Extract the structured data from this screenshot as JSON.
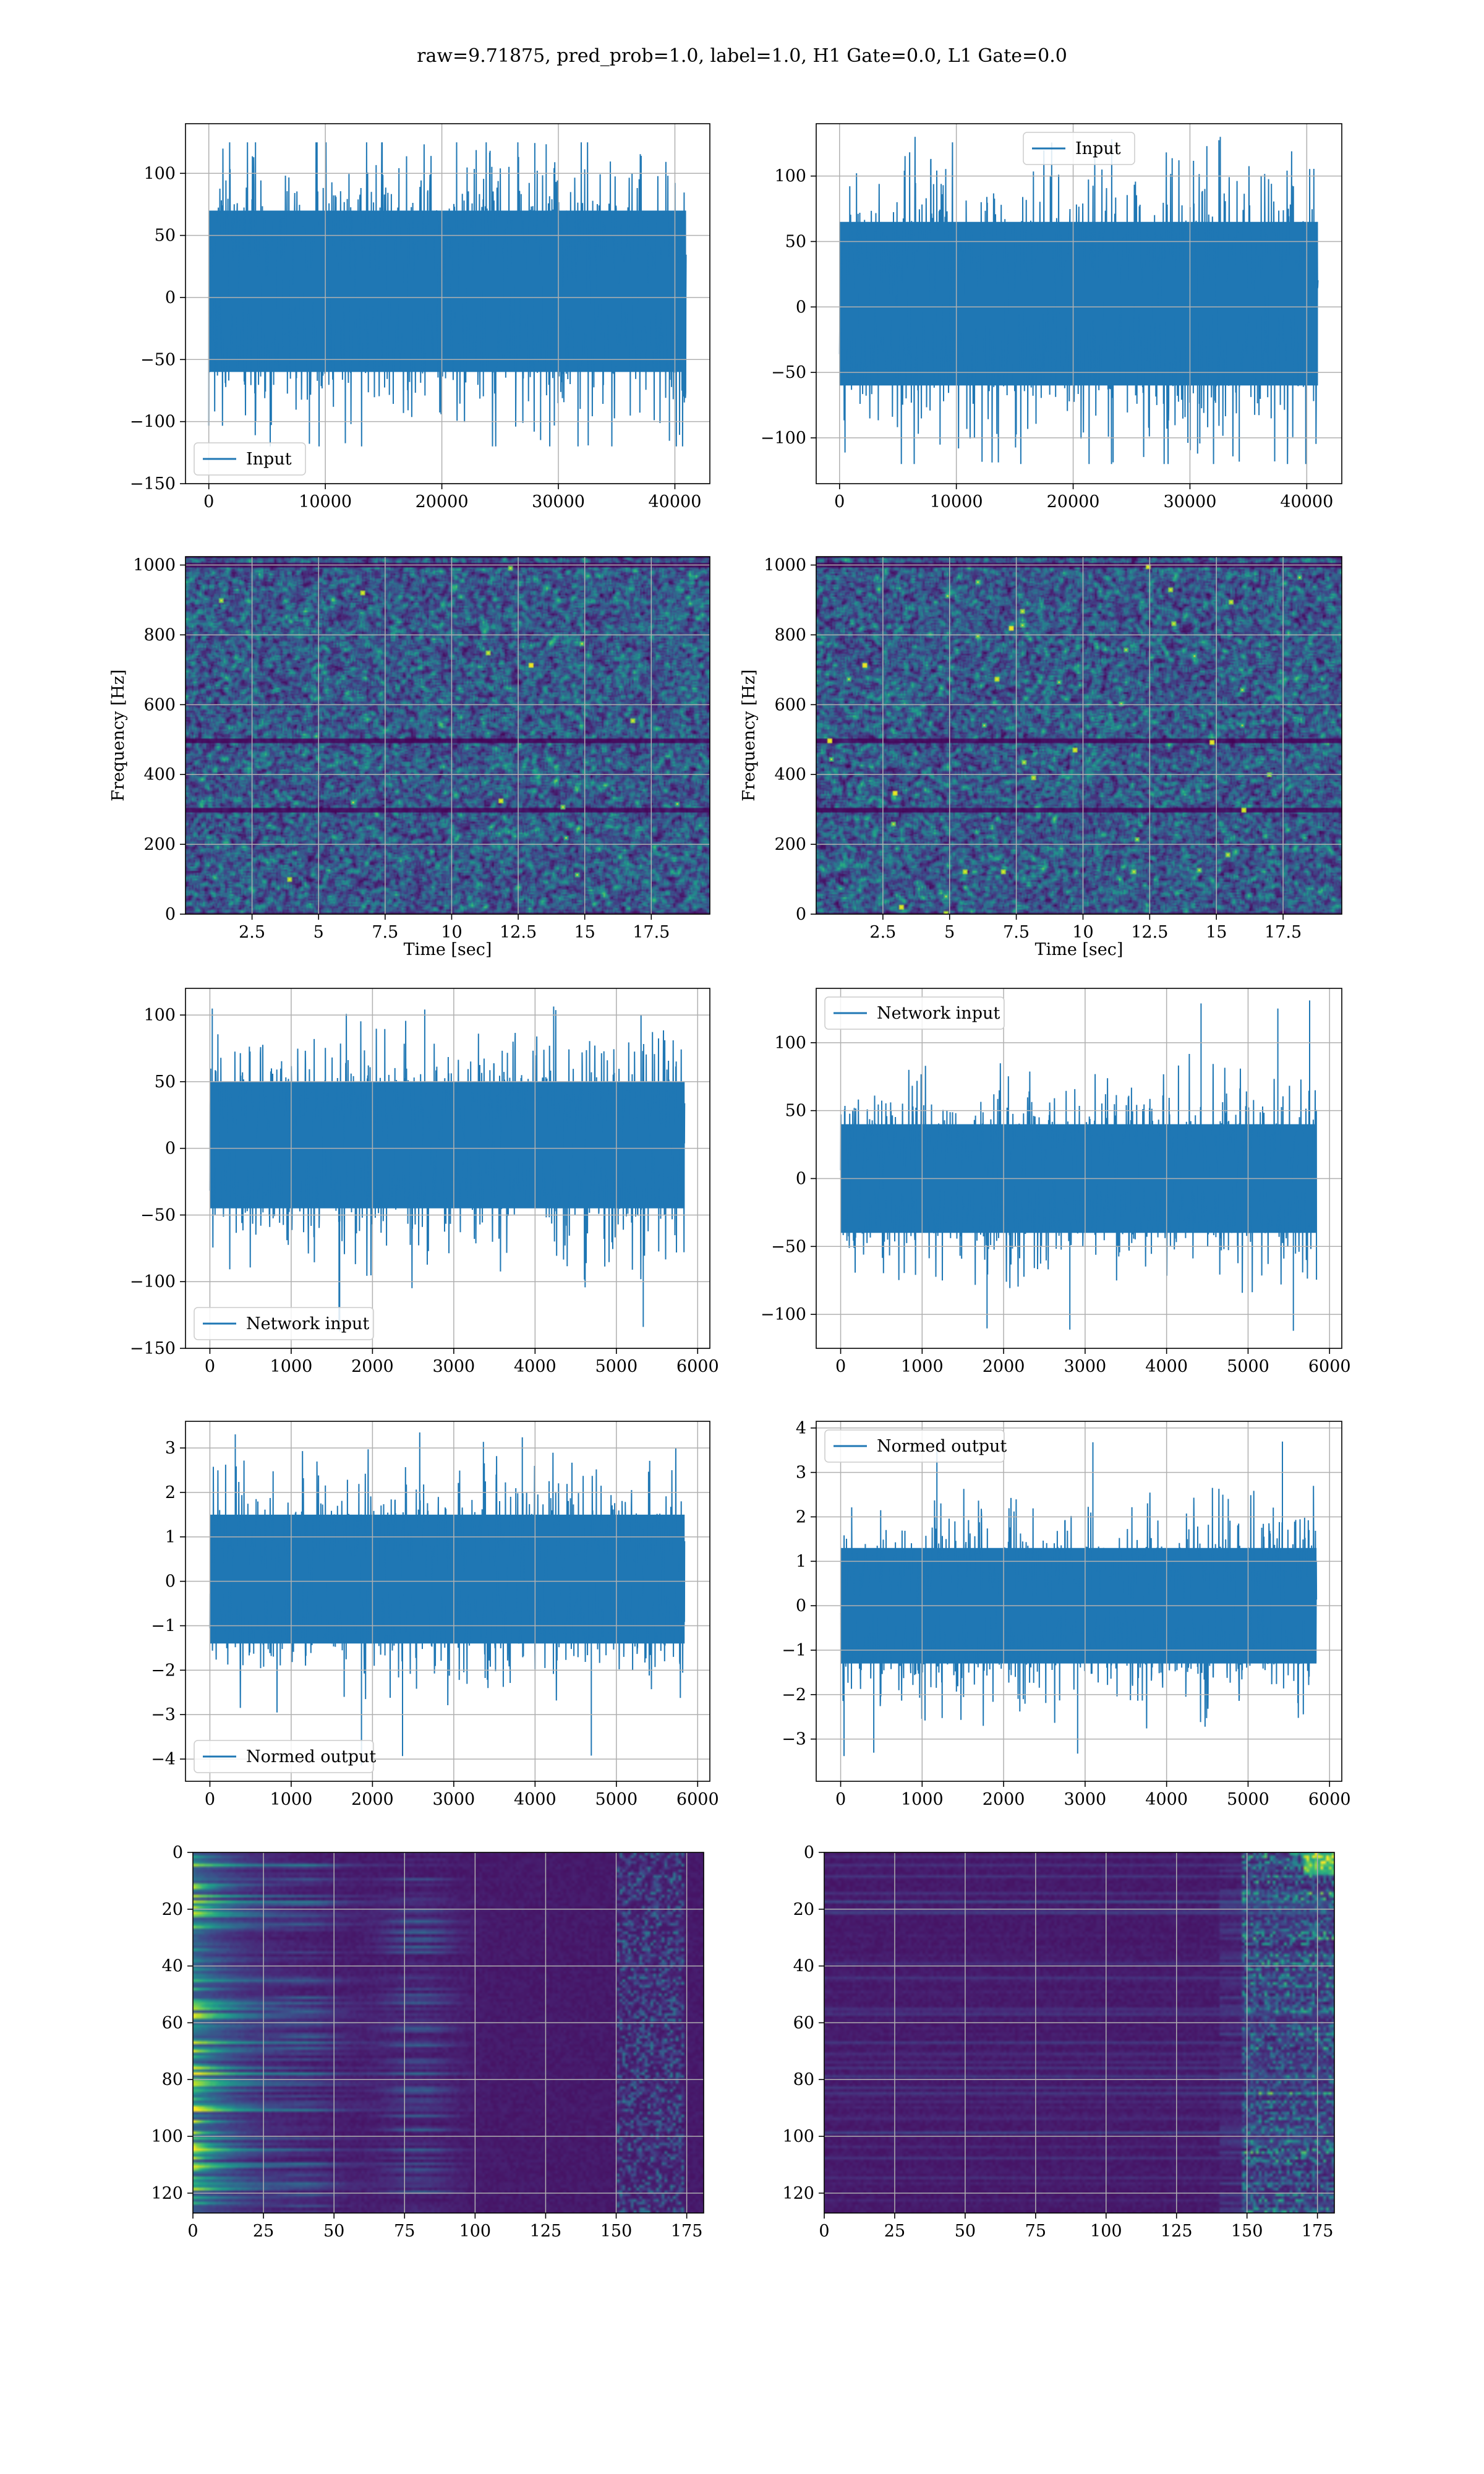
{
  "figure": {
    "suptitle": "raw=9.71875, pred_prob=1.0, label=1.0, H1 Gate=0.0, L1 Gate=0.0"
  },
  "colors": {
    "line": "#1f77b4",
    "grid": "#b0b0b0",
    "viridis": [
      "#440154",
      "#482878",
      "#3e4a89",
      "#31688e",
      "#26828e",
      "#1f9e89",
      "#35b779",
      "#6ece58",
      "#b5de2b",
      "#fde725"
    ]
  },
  "chart_data": [
    {
      "panel": "row1-left",
      "type": "line",
      "legend": "Input",
      "legend_loc": "lower left",
      "xlim": [
        -2000,
        43000
      ],
      "ylim": [
        -150,
        140
      ],
      "xticks": [
        0,
        10000,
        20000,
        30000,
        40000
      ],
      "yticks": [
        -150,
        -100,
        -50,
        0,
        50,
        100
      ],
      "series": [
        {
          "name": "Input",
          "x_range": [
            0,
            40960
          ],
          "envelope_min": -120,
          "envelope_max": 125,
          "core_band": [
            -60,
            70
          ]
        }
      ]
    },
    {
      "panel": "row1-right",
      "type": "line",
      "legend": "Input",
      "legend_loc": "upper center",
      "xlim": [
        -2000,
        43000
      ],
      "ylim": [
        -135,
        140
      ],
      "xticks": [
        0,
        10000,
        20000,
        30000,
        40000
      ],
      "yticks": [
        -100,
        -50,
        0,
        50,
        100
      ],
      "series": [
        {
          "name": "Input",
          "x_range": [
            0,
            40960
          ],
          "envelope_min": -120,
          "envelope_max": 130,
          "core_band": [
            -60,
            65
          ]
        }
      ]
    },
    {
      "panel": "row2-left",
      "type": "heatmap",
      "xlabel": "Time [sec]",
      "ylabel": "Frequency [Hz]",
      "xlim": [
        0,
        19.7
      ],
      "ylim": [
        0,
        1024
      ],
      "xticks": [
        2.5,
        5.0,
        7.5,
        10.0,
        12.5,
        15.0,
        17.5
      ],
      "yticks": [
        0,
        200,
        400,
        600,
        800,
        1000
      ],
      "note": "noise spectrogram"
    },
    {
      "panel": "row2-right",
      "type": "heatmap",
      "xlabel": "Time [sec]",
      "ylabel": "Frequency [Hz]",
      "xlim": [
        0,
        19.7
      ],
      "ylim": [
        0,
        1024
      ],
      "xticks": [
        2.5,
        5.0,
        7.5,
        10.0,
        12.5,
        15.0,
        17.5
      ],
      "yticks": [
        0,
        200,
        400,
        600,
        800,
        1000
      ],
      "note": "noise spectrogram"
    },
    {
      "panel": "row3-left",
      "type": "line",
      "legend": "Network input",
      "legend_loc": "lower left",
      "xlim": [
        -300,
        6150
      ],
      "ylim": [
        -150,
        120
      ],
      "xticks": [
        0,
        1000,
        2000,
        3000,
        4000,
        5000,
        6000
      ],
      "yticks": [
        -150,
        -100,
        -50,
        0,
        50,
        100
      ],
      "series": [
        {
          "name": "Network input",
          "x_range": [
            0,
            5840
          ],
          "envelope_min": -138,
          "envelope_max": 108,
          "core_band": [
            -45,
            50
          ]
        }
      ]
    },
    {
      "panel": "row3-right",
      "type": "line",
      "legend": "Network input",
      "legend_loc": "upper left",
      "xlim": [
        -300,
        6150
      ],
      "ylim": [
        -125,
        140
      ],
      "xticks": [
        0,
        1000,
        2000,
        3000,
        4000,
        5000,
        6000
      ],
      "yticks": [
        -100,
        -50,
        0,
        50,
        100
      ],
      "series": [
        {
          "name": "Network input",
          "x_range": [
            0,
            5840
          ],
          "envelope_min": -115,
          "envelope_max": 132,
          "core_band": [
            -40,
            40
          ]
        }
      ]
    },
    {
      "panel": "row4-left",
      "type": "line",
      "legend": "Normed output",
      "legend_loc": "lower left",
      "xlim": [
        -300,
        6150
      ],
      "ylim": [
        -4.5,
        3.6
      ],
      "xticks": [
        0,
        1000,
        2000,
        3000,
        4000,
        5000,
        6000
      ],
      "yticks": [
        -4,
        -3,
        -2,
        -1,
        0,
        1,
        2,
        3
      ],
      "series": [
        {
          "name": "Normed output",
          "x_range": [
            0,
            5840
          ],
          "envelope_min": -4.2,
          "envelope_max": 3.35,
          "core_band": [
            -1.4,
            1.5
          ]
        }
      ]
    },
    {
      "panel": "row4-right",
      "type": "line",
      "legend": "Normed output",
      "legend_loc": "upper left",
      "xlim": [
        -300,
        6150
      ],
      "ylim": [
        -3.95,
        4.15
      ],
      "xticks": [
        0,
        1000,
        2000,
        3000,
        4000,
        5000,
        6000
      ],
      "yticks": [
        -3,
        -2,
        -1,
        0,
        1,
        2,
        3,
        4
      ],
      "series": [
        {
          "name": "Normed output",
          "x_range": [
            0,
            5840
          ],
          "envelope_min": -3.5,
          "envelope_max": 3.85,
          "core_band": [
            -1.3,
            1.3
          ]
        }
      ]
    },
    {
      "panel": "row5-left",
      "type": "heatmap",
      "xlim": [
        0,
        181
      ],
      "ylim": [
        127,
        0
      ],
      "xticks": [
        0,
        25,
        50,
        75,
        100,
        125,
        150,
        175
      ],
      "yticks": [
        0,
        20,
        40,
        60,
        80,
        100,
        120
      ],
      "note": "feature map, left-side bright bands"
    },
    {
      "panel": "row5-right",
      "type": "heatmap",
      "xlim": [
        0,
        181
      ],
      "ylim": [
        127,
        0
      ],
      "xticks": [
        0,
        25,
        50,
        75,
        100,
        125,
        150,
        175
      ],
      "yticks": [
        0,
        20,
        40,
        60,
        80,
        100,
        120
      ],
      "note": "feature map, right-side activity"
    }
  ]
}
